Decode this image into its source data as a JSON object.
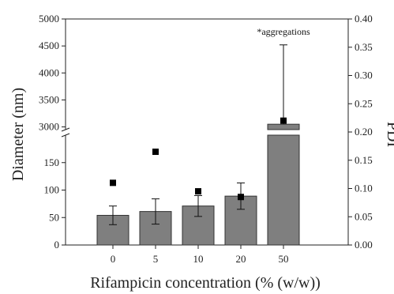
{
  "chart_data": {
    "type": "bar",
    "xlabel": "Rifampicin concentration (% (w/w))",
    "ylabel": "Diameter (nm)",
    "y2label": "PDI",
    "categories": [
      "0",
      "5",
      "10",
      "20",
      "50"
    ],
    "axis_break": true,
    "y_lower": {
      "range": [
        0,
        200
      ],
      "ticks": [
        0,
        50,
        100,
        150
      ]
    },
    "y_upper": {
      "range": [
        2950,
        5000
      ],
      "ticks": [
        3000,
        3500,
        4000,
        4500,
        5000
      ]
    },
    "y2": {
      "range": [
        0,
        0.4
      ],
      "ticks": [
        "0.00",
        "0.05",
        "0.10",
        "0.15",
        "0.20",
        "0.25",
        "0.30",
        "0.35",
        "0.40"
      ]
    },
    "series": [
      {
        "name": "Diameter",
        "kind": "bar",
        "axis": "left",
        "color": "#7f7f7f",
        "values": [
          54,
          61,
          71,
          89,
          3050
        ],
        "errors": [
          17,
          23,
          19,
          24,
          1470
        ]
      },
      {
        "name": "PDI",
        "kind": "marker",
        "axis": "right",
        "color": "#000000",
        "values": [
          0.11,
          0.165,
          0.095,
          0.085,
          0.22
        ]
      }
    ],
    "annotations": [
      {
        "text": "*aggregations",
        "category": "50"
      }
    ],
    "grid": false
  }
}
